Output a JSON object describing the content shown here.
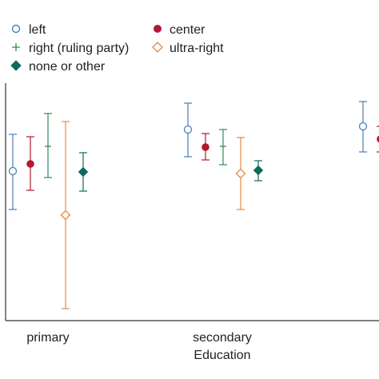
{
  "chart_data": {
    "type": "scatter",
    "title": "",
    "xlabel": "Education",
    "ylabel": "",
    "categories": [
      "primary",
      "secondary",
      ""
    ],
    "legend_placement": "top",
    "grid": false,
    "series": [
      {
        "name": "left",
        "marker": "circle-open",
        "color": "#4a7fb5",
        "values": [
          {
            "category": "primary",
            "y": 214,
            "low": 168,
            "high": 262
          },
          {
            "category": "secondary",
            "y": 162,
            "low": 129,
            "high": 196
          },
          {
            "category": "",
            "y": 158,
            "low": 127,
            "high": 190
          }
        ]
      },
      {
        "name": "center",
        "marker": "circle-filled",
        "color": "#b5182e",
        "values": [
          {
            "category": "primary",
            "y": 205,
            "low": 171,
            "high": 238
          },
          {
            "category": "secondary",
            "y": 184,
            "low": 167,
            "high": 200
          },
          {
            "category": "",
            "y": 174,
            "low": 158,
            "high": 190
          }
        ]
      },
      {
        "name": "right (ruling party)",
        "marker": "plus",
        "color": "#2e8b57",
        "values": [
          {
            "category": "primary",
            "y": 183,
            "low": 142,
            "high": 222
          },
          {
            "category": "secondary",
            "y": 183,
            "low": 162,
            "high": 206
          }
        ]
      },
      {
        "name": "ultra-right",
        "marker": "diamond-open",
        "color": "#e8883a",
        "values": [
          {
            "category": "primary",
            "y": 269,
            "low": 152,
            "high": 386
          },
          {
            "category": "secondary",
            "y": 217,
            "low": 172,
            "high": 262
          }
        ]
      },
      {
        "name": "none or other",
        "marker": "diamond-filled",
        "color": "#0d6b5e",
        "values": [
          {
            "category": "primary",
            "y": 215,
            "low": 191,
            "high": 239
          },
          {
            "category": "secondary",
            "y": 213,
            "low": 201,
            "high": 226
          }
        ]
      }
    ]
  }
}
